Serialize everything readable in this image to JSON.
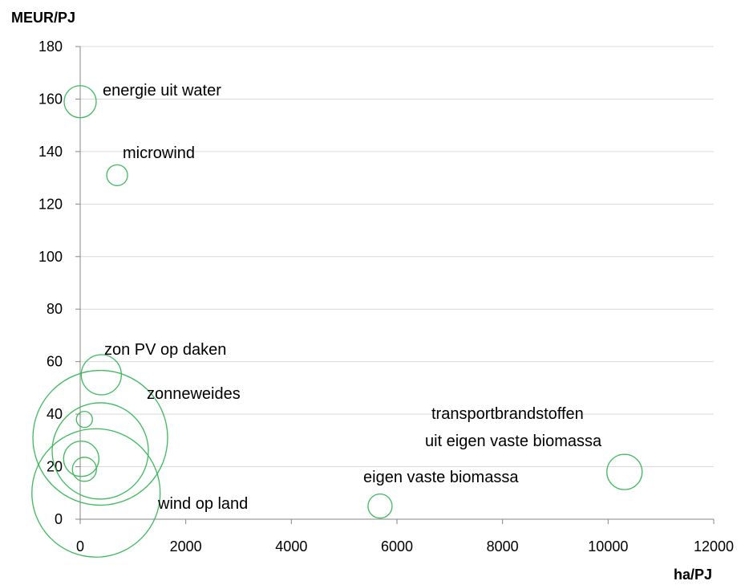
{
  "chart_data": {
    "type": "scatter",
    "y_label": "MEUR/PJ",
    "x_label": "ha/PJ",
    "color": "#3dba5c",
    "grid": true,
    "xlim": [
      0,
      12000
    ],
    "xticks": [
      0,
      2000,
      4000,
      6000,
      8000,
      10000,
      12000
    ],
    "ylim": [
      0,
      180
    ],
    "yticks": [
      0,
      20,
      40,
      60,
      80,
      100,
      120,
      140,
      160,
      180
    ],
    "x": [
      0,
      700,
      400,
      380,
      380,
      300,
      80,
      20,
      80,
      5680,
      10310
    ],
    "values": [
      159,
      131,
      55,
      31,
      26,
      10,
      38,
      23,
      19,
      5,
      18
    ],
    "sizes": [
      20,
      13,
      25,
      84,
      60,
      80,
      10,
      22,
      15,
      15,
      22
    ],
    "annotations": [
      "energie uit water",
      "microwind",
      "zon PV op daken",
      "zonneweides",
      "transportbrandstoffen",
      "uit eigen vaste biomassa",
      "eigen vaste biomassa",
      "wind op land"
    ]
  }
}
